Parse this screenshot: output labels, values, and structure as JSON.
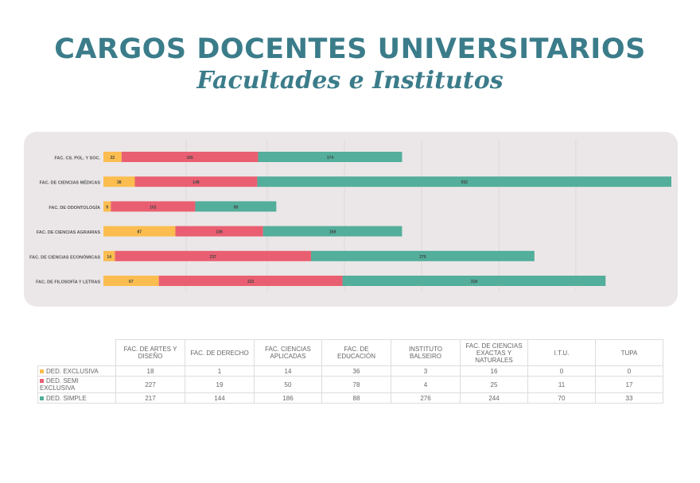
{
  "title": "CARGOS DOCENTES UNIVERSITARIOS",
  "subtitle": "Facultades e Institutos",
  "colors": {
    "exclusiva": "#fbbd4f",
    "semi": "#e95f71",
    "simple": "#53ae9b",
    "title": "#3b7c8a"
  },
  "chart_data": {
    "type": "bar",
    "orientation": "horizontal",
    "stacked": true,
    "grid": true,
    "categories": [
      "FAC. CS. POL. Y SOC.",
      "FAC. DE CIENCIAS MÉDICAS",
      "FAC. DE ODONTOLOGÍA",
      "FAC. DE CIENCIAS AGRARIAS",
      "FAC. DE CIENCIAS ECONÓMICAS",
      "FAC. DE FILOSOFÍA Y LETRAS"
    ],
    "series": [
      {
        "key": "exclusiva",
        "values": [
          22,
          38,
          9,
          87,
          14,
          67
        ]
      },
      {
        "key": "semi",
        "values": [
          165,
          148,
          102,
          106,
          237,
          222
        ]
      },
      {
        "key": "simple",
        "values": [
          174,
          552,
          98,
          168,
          270,
          318
        ]
      }
    ]
  },
  "table": {
    "columns": [
      "FAC. DE ARTES Y DISEÑO",
      "FAC. DE DERECHO",
      "FAC. CIENCIAS APLICADAS",
      "FAC. DE EDUCACIÓN",
      "INSTITUTO BALSEIRO",
      "FAC. DE CIENCIAS EXACTAS Y NATURALES",
      "I.T.U.",
      "TUPA"
    ],
    "rows": [
      {
        "label": "DED. EXCLUSIVA",
        "color": "#fbbd4f",
        "values": [
          "18",
          "1",
          "14",
          "36",
          "3",
          "16",
          "0",
          "0"
        ]
      },
      {
        "label": "DED. SEMI EXCLUSIVA",
        "color": "#e95f71",
        "values": [
          "227",
          "19",
          "50",
          "78",
          "4",
          "25",
          "11",
          "17"
        ]
      },
      {
        "label": "DED. SIMPLE",
        "color": "#53ae9b",
        "values": [
          "217",
          "144",
          "186",
          "88",
          "276",
          "244",
          "70",
          "33"
        ]
      }
    ]
  }
}
